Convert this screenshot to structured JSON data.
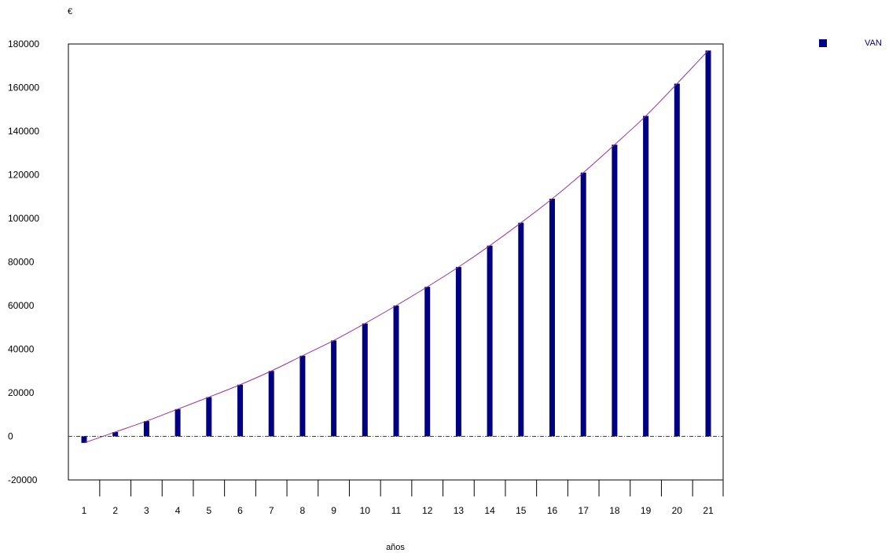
{
  "chart_data": {
    "type": "bar",
    "title": "",
    "ylabel": "€",
    "xlabel": "años",
    "categories": [
      "1",
      "2",
      "3",
      "4",
      "5",
      "6",
      "7",
      "8",
      "9",
      "10",
      "11",
      "12",
      "13",
      "14",
      "15",
      "16",
      "17",
      "18",
      "19",
      "20",
      "21"
    ],
    "series": [
      {
        "name": "VAN",
        "values": [
          -3000,
          2000,
          7000,
          12500,
          18000,
          23700,
          30000,
          37000,
          44000,
          51800,
          60000,
          68600,
          77700,
          87500,
          98000,
          109000,
          121000,
          133800,
          147000,
          161800,
          177000
        ]
      }
    ],
    "trendline": {
      "type": "polynomial",
      "series": "VAN"
    },
    "ylim": [
      -20000,
      180000
    ],
    "yticks": [
      -20000,
      0,
      20000,
      40000,
      60000,
      80000,
      100000,
      120000,
      140000,
      160000,
      180000
    ],
    "zero_line": "dash-dot",
    "legend_position": "top-right",
    "grid": false,
    "colors": {
      "bars": "#000080",
      "trendline": "#993399",
      "axis": "#000000",
      "zero_line": "#404040"
    }
  }
}
